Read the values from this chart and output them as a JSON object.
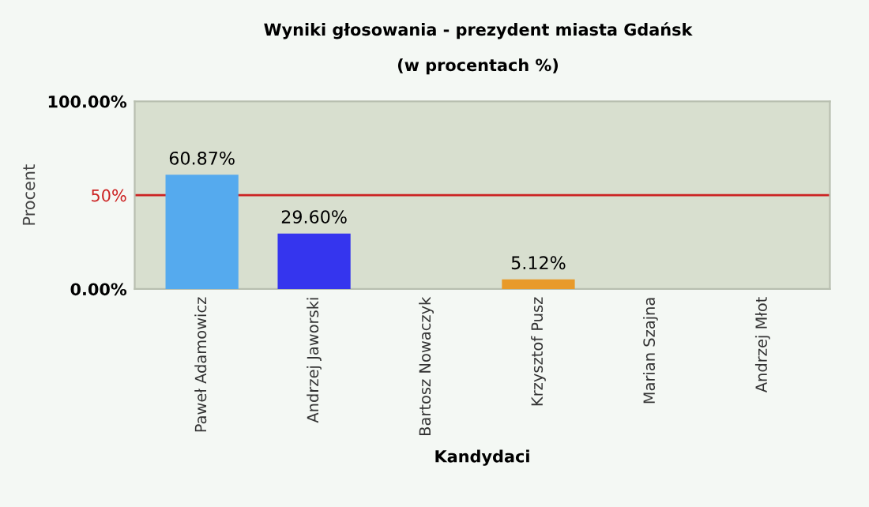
{
  "chart_data": {
    "type": "bar",
    "title": "Wyniki głosowania - prezydent miasta Gdańsk",
    "subtitle": "(w procentach %)",
    "xlabel": "Kandydaci",
    "ylabel": "Procent",
    "categories": [
      "Paweł Adamowicz",
      "Andrzej Jaworski",
      "Bartosz Nowaczyk",
      "Krzysztof Pusz",
      "Marian Szajna",
      "Andrzej Młot"
    ],
    "values": [
      60.87,
      29.6,
      0,
      5.12,
      0,
      0
    ],
    "colors": [
      "#55aaee",
      "#3535ee",
      "#888888",
      "#e89a2a",
      "#888888",
      "#888888"
    ],
    "value_labels": [
      "60.87%",
      "29.60%",
      null,
      "5.12%",
      null,
      null
    ],
    "ylim": [
      0,
      100
    ],
    "yticks": [
      {
        "value": 0,
        "label": "0.00%"
      },
      {
        "value": 50,
        "label": "50%"
      },
      {
        "value": 100,
        "label": "100.00%"
      }
    ],
    "ref_lines": [
      {
        "axis": "y",
        "value": 50,
        "color": "#cc2222"
      }
    ],
    "grid": false,
    "legend": false
  }
}
